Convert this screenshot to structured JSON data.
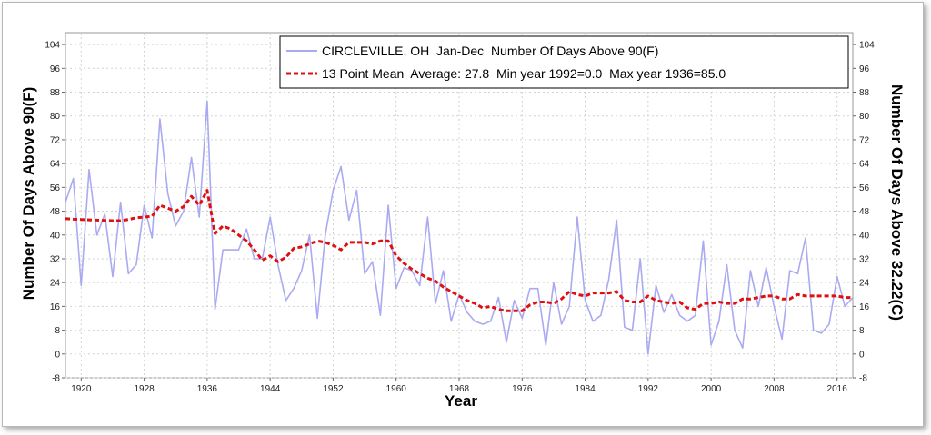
{
  "chart_data": {
    "type": "line",
    "xlabel": "Year",
    "ylabel_left": "Number Of Days Above 90(F)",
    "ylabel_right": "Number Of Days Above 32.22(C)",
    "xlim": [
      1918,
      2018
    ],
    "ylim": [
      -8,
      108
    ],
    "x_ticks": [
      1920,
      1928,
      1936,
      1944,
      1952,
      1960,
      1968,
      1976,
      1984,
      1992,
      2000,
      2008,
      2016
    ],
    "y_ticks": [
      -8,
      0,
      8,
      16,
      24,
      32,
      40,
      48,
      56,
      64,
      72,
      80,
      88,
      96,
      104
    ],
    "y_ticks_right": [
      -8,
      0,
      8,
      16,
      24,
      32,
      40,
      48,
      56,
      64,
      72,
      80,
      88,
      96,
      104
    ],
    "grid": true,
    "legend_position": "top-right",
    "series": [
      {
        "name": "CIRCLEVILLE, OH  Jan-Dec  Number Of Days Above 90(F)",
        "color": "#aaaaf2",
        "style": "solid",
        "x": [
          1918,
          1919,
          1920,
          1921,
          1922,
          1923,
          1924,
          1925,
          1926,
          1927,
          1928,
          1929,
          1930,
          1931,
          1932,
          1933,
          1934,
          1935,
          1936,
          1937,
          1938,
          1939,
          1940,
          1941,
          1942,
          1943,
          1944,
          1945,
          1946,
          1947,
          1948,
          1949,
          1950,
          1951,
          1952,
          1953,
          1954,
          1955,
          1956,
          1957,
          1958,
          1959,
          1960,
          1961,
          1962,
          1963,
          1964,
          1965,
          1966,
          1967,
          1968,
          1969,
          1970,
          1971,
          1972,
          1973,
          1974,
          1975,
          1976,
          1977,
          1978,
          1979,
          1980,
          1981,
          1982,
          1983,
          1984,
          1985,
          1986,
          1987,
          1988,
          1989,
          1990,
          1991,
          1992,
          1993,
          1994,
          1995,
          1996,
          1997,
          1998,
          1999,
          2000,
          2001,
          2002,
          2003,
          2004,
          2005,
          2006,
          2007,
          2008,
          2009,
          2010,
          2011,
          2012,
          2013,
          2014,
          2015,
          2016,
          2017,
          2018
        ],
        "y": [
          51,
          59,
          23,
          62,
          40,
          47,
          26,
          51,
          27,
          30,
          50,
          39,
          79,
          54,
          43,
          48,
          66,
          46,
          85,
          15,
          35,
          35,
          35,
          42,
          32,
          32,
          46,
          30,
          18,
          22,
          28,
          40,
          12,
          40,
          55,
          63,
          45,
          55,
          27,
          31,
          13,
          50,
          22,
          29,
          28,
          23,
          46,
          17,
          28,
          11,
          20,
          14,
          11,
          10,
          11,
          19,
          4,
          18,
          12,
          22,
          22,
          3,
          24,
          10,
          16,
          46,
          18,
          11,
          13,
          25,
          45,
          9,
          8,
          32,
          0,
          23,
          14,
          20,
          13,
          11,
          13,
          38,
          3,
          11,
          30,
          8,
          2,
          28,
          16,
          29,
          16,
          5,
          28,
          27,
          39,
          8,
          7,
          10,
          26,
          16,
          19
        ]
      },
      {
        "name": "13 Point Mean  Average: 27.8  Min year 1992=0.0  Max year 1936=85.0",
        "color": "#e01010",
        "style": "dashed",
        "x": [
          1918,
          1919,
          1920,
          1921,
          1922,
          1923,
          1924,
          1925,
          1926,
          1927,
          1928,
          1929,
          1930,
          1931,
          1932,
          1933,
          1934,
          1935,
          1936,
          1937,
          1938,
          1939,
          1940,
          1941,
          1942,
          1943,
          1944,
          1945,
          1946,
          1947,
          1948,
          1949,
          1950,
          1951,
          1952,
          1953,
          1954,
          1955,
          1956,
          1957,
          1958,
          1959,
          1960,
          1961,
          1962,
          1963,
          1964,
          1965,
          1966,
          1967,
          1968,
          1969,
          1970,
          1971,
          1972,
          1973,
          1974,
          1975,
          1976,
          1977,
          1978,
          1979,
          1980,
          1981,
          1982,
          1983,
          1984,
          1985,
          1986,
          1987,
          1988,
          1989,
          1990,
          1991,
          1992,
          1993,
          1994,
          1995,
          1996,
          1997,
          1998,
          1999,
          2000,
          2001,
          2002,
          2003,
          2004,
          2005,
          2006,
          2007,
          2008,
          2009,
          2010,
          2011,
          2012,
          2013,
          2014,
          2015,
          2016,
          2017,
          2018
        ],
        "y": [
          45.5,
          45.3,
          45.2,
          45.1,
          45.0,
          44.9,
          44.8,
          44.8,
          45.2,
          45.8,
          46.0,
          46.3,
          50.0,
          49.0,
          48.0,
          49.5,
          53.0,
          50.0,
          55.0,
          40.5,
          43.0,
          42.0,
          40.0,
          38.0,
          35.0,
          31.5,
          33.0,
          31.0,
          32.5,
          35.5,
          36.0,
          37.0,
          38.0,
          37.5,
          36.5,
          35.0,
          37.5,
          37.5,
          37.5,
          37.0,
          38.0,
          38.0,
          33.0,
          30.5,
          28.5,
          27.0,
          25.5,
          24.5,
          22.5,
          21.0,
          19.5,
          18.0,
          17.0,
          15.5,
          16.0,
          15.0,
          14.5,
          14.5,
          14.5,
          16.5,
          17.5,
          17.5,
          17.0,
          18.5,
          21.0,
          20.0,
          19.5,
          20.5,
          20.5,
          20.5,
          21.0,
          18.0,
          17.5,
          17.5,
          19.5,
          18.0,
          17.5,
          17.0,
          17.5,
          15.5,
          15.0,
          17.0,
          17.0,
          17.5,
          17.0,
          17.0,
          18.5,
          18.5,
          19.0,
          19.5,
          19.5,
          18.5,
          18.5,
          20.0,
          19.5,
          19.5,
          19.5,
          19.5,
          19.5,
          19.0,
          19.0
        ]
      }
    ]
  }
}
